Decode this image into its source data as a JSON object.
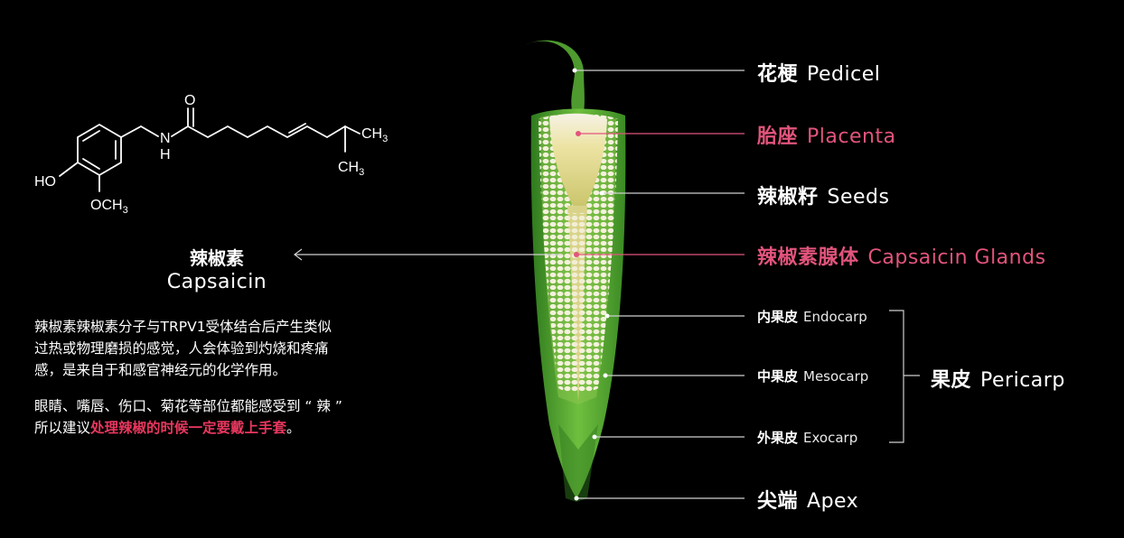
{
  "molecule": {
    "name_zh": "辣椒素",
    "name_en": "Capsaicin",
    "atoms": {
      "oxygen": "O",
      "nitrogen": "N",
      "hydrogen": "H",
      "methyl_top": "CH",
      "methyl_bottom": "CH",
      "subscript": "3",
      "hydroxyl": "HO",
      "methoxy": "OCH",
      "methoxy_sub": "3"
    }
  },
  "description": {
    "para1": [
      "辣椒素辣椒素分子与TRPV1受体结合后产生类似",
      "过热或物理磨损的感觉，人会体验到灼烧和疼痛",
      "感，是来自于和感官神经元的化学作用。"
    ],
    "para2_line1": "眼睛、嘴唇、伤口、菊花等部位都能感受到 “ 辣 ”",
    "para2_line2_prefix": "所以建议",
    "para2_line2_highlight": "处理辣椒的时候一定要戴上手套",
    "para2_line2_suffix": "。"
  },
  "labels": {
    "pedicel": {
      "zh": "花梗",
      "en": "Pedicel"
    },
    "placenta": {
      "zh": "胎座",
      "en": "Placenta"
    },
    "seeds": {
      "zh": "辣椒籽",
      "en": "Seeds"
    },
    "glands": {
      "zh": "辣椒素腺体",
      "en": "Capsaicin Glands"
    },
    "endocarp": {
      "zh": "内果皮",
      "en": "Endocarp"
    },
    "mesocarp": {
      "zh": "中果皮",
      "en": "Mesocarp"
    },
    "exocarp": {
      "zh": "外果皮",
      "en": "Exocarp"
    },
    "pericarp": {
      "zh": "果皮",
      "en": "Pericarp"
    },
    "apex": {
      "zh": "尖端",
      "en": "Apex"
    }
  },
  "colors": {
    "background": "#000000",
    "accent_pink": "#e2547c",
    "highlight_red": "#e8375e",
    "pepper_green": "#4fa532",
    "placenta_cream": "#efe6b0",
    "leader_line": "#cfcfcf"
  }
}
